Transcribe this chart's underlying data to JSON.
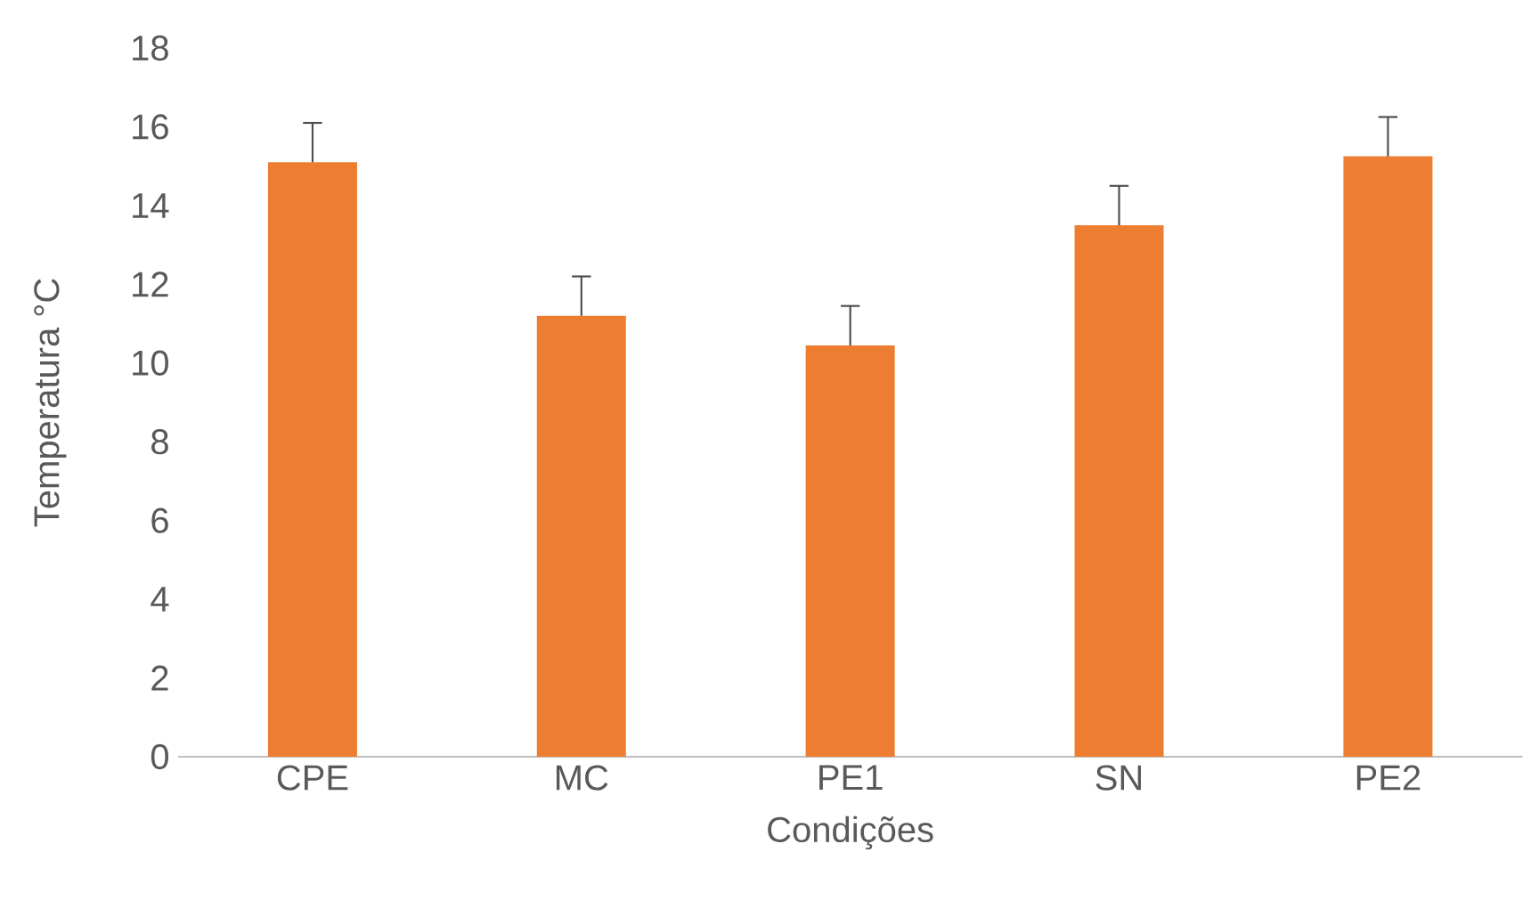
{
  "chart_data": {
    "type": "bar",
    "xlabel": "Condições",
    "ylabel": "Temperatura °C",
    "categories": [
      "CPE",
      "MC",
      "PE1",
      "SN",
      "PE2"
    ],
    "values": [
      15.1,
      11.2,
      10.45,
      13.5,
      15.25
    ],
    "errors": [
      [
        15.1,
        16.1
      ],
      [
        11.2,
        12.2
      ],
      [
        10.45,
        11.45
      ],
      [
        13.5,
        14.5
      ],
      [
        15.25,
        16.25
      ]
    ],
    "color": "#ed7d31",
    "ylim": [
      0,
      18
    ],
    "yticks": [
      0,
      2,
      4,
      6,
      8,
      10,
      12,
      14,
      16,
      18
    ],
    "grid": false
  }
}
